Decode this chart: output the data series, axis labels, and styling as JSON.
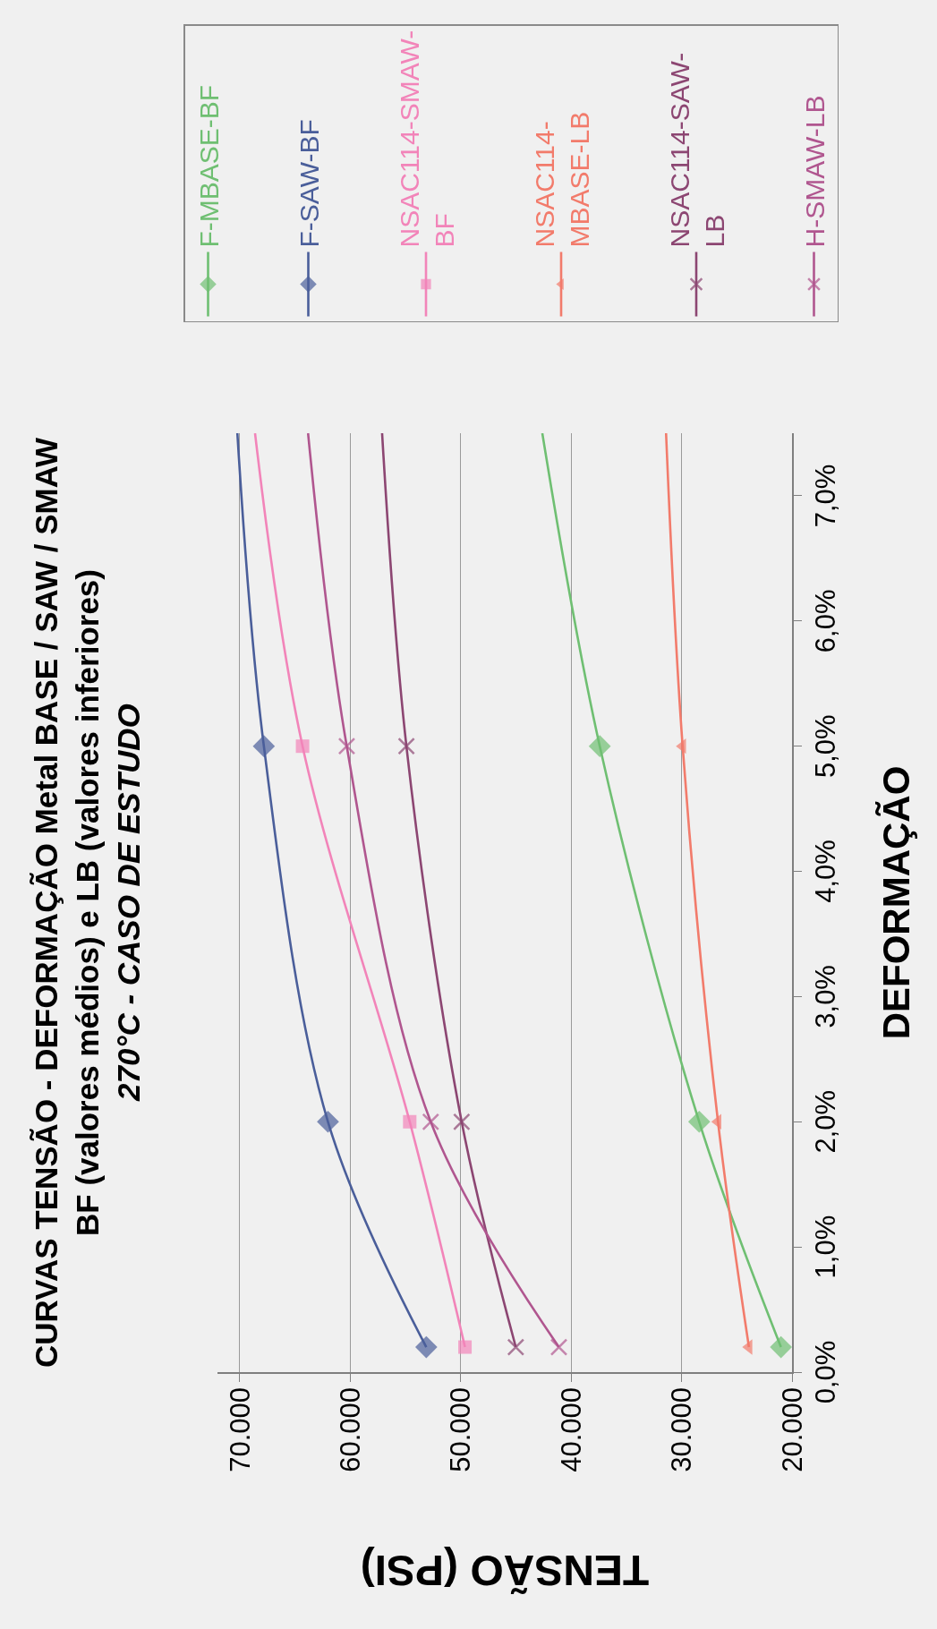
{
  "chart_data": {
    "type": "line",
    "title": "CURVAS TENSÃO - DEFORMAÇÃO Metal BASE / SAW / SMAW\nBF (valores médios) e LB (valores inferiores)",
    "subtitle": "270°C - CASO DE ESTUDO",
    "xlabel": "TENSÃO (PSI)",
    "ylabel": "DEFORMAÇÃO",
    "xlim": [
      72000,
      20000
    ],
    "xticks": [
      {
        "value": 70000,
        "label": "70.000"
      },
      {
        "value": 60000,
        "label": "60.000"
      },
      {
        "value": 50000,
        "label": "50.000"
      },
      {
        "value": 40000,
        "label": "40.000"
      },
      {
        "value": 30000,
        "label": "30.000"
      },
      {
        "value": 20000,
        "label": "20.000"
      }
    ],
    "ylim": [
      0,
      7.5
    ],
    "yticks": [
      {
        "value": 0,
        "label": "0,0%"
      },
      {
        "value": 1,
        "label": "1,0%"
      },
      {
        "value": 2,
        "label": "2,0%"
      },
      {
        "value": 3,
        "label": "3,0%"
      },
      {
        "value": 4,
        "label": "4,0%"
      },
      {
        "value": 5,
        "label": "5,0%"
      },
      {
        "value": 6,
        "label": "6,0%"
      },
      {
        "value": 7,
        "label": "7,0%"
      }
    ],
    "grid": "x",
    "legend": "top",
    "line_style": "solid",
    "series": [
      {
        "name": "F-MBASE-BF",
        "color": "#6fbf72",
        "marker": "diamond",
        "x": [
          21000,
          28400,
          37400,
          42600
        ],
        "values": [
          0.2,
          2,
          5,
          7.5
        ]
      },
      {
        "name": "F-SAW-BF",
        "color": "#4a5e9a",
        "marker": "diamond",
        "x": [
          53100,
          62000,
          67800,
          70200
        ],
        "values": [
          0.2,
          2,
          5,
          7.5
        ]
      },
      {
        "name": "NSAC114-SMAW-BF",
        "color": "#f284b9",
        "marker": "square",
        "x": [
          49600,
          54600,
          64300,
          68600
        ],
        "values": [
          0.2,
          2,
          5,
          7.5
        ]
      },
      {
        "name": "NSAC114-MBASE-LB",
        "color": "#f27b6b",
        "marker": "triangle",
        "x": [
          23900,
          26700,
          29900,
          31400
        ],
        "values": [
          0.2,
          2,
          5,
          7.5
        ]
      },
      {
        "name": "NSAC114-SAW-LB",
        "color": "#8c4672",
        "marker": "cross",
        "x": [
          45000,
          49900,
          54900,
          57100
        ],
        "values": [
          0.2,
          2,
          5,
          7.5
        ]
      },
      {
        "name": "H-SMAW-LB",
        "color": "#b0568f",
        "marker": "cross",
        "x": [
          41100,
          52700,
          60300,
          63800
        ],
        "values": [
          0.2,
          2,
          5,
          7.5
        ]
      }
    ]
  }
}
